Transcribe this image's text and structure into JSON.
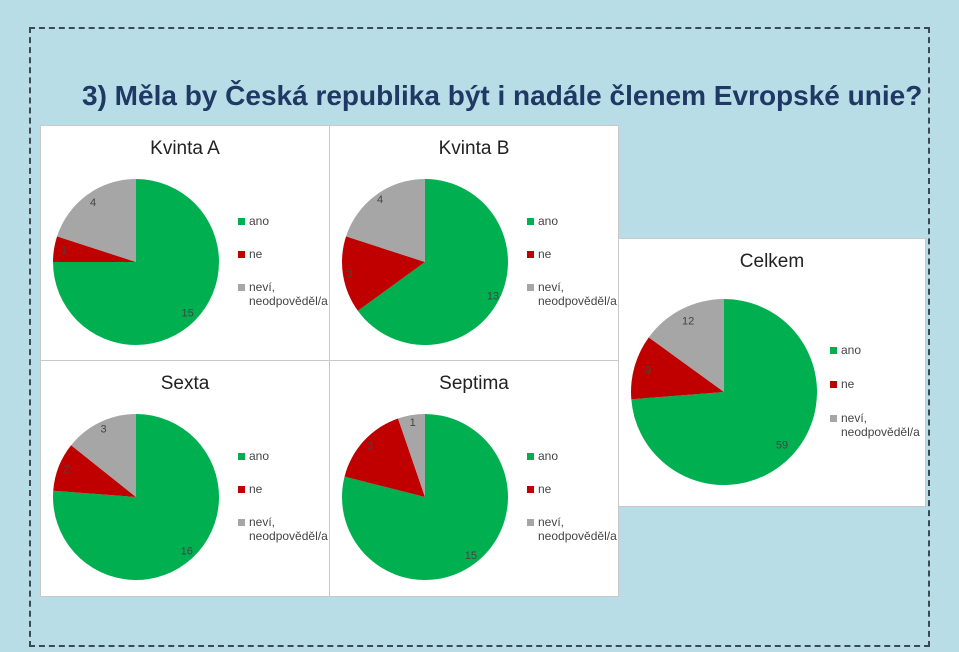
{
  "heading": "3)  Měla by Česká republika být i nadále členem Evropské unie?",
  "colors": {
    "ano": "#00b050",
    "ne": "#c00000",
    "nevi": "#a6a6a6"
  },
  "legend": [
    "ano",
    "ne",
    "neví, neodpověděl/a"
  ],
  "chart_data": [
    {
      "type": "pie",
      "title": "Kvinta A",
      "categories": [
        "ano",
        "ne",
        "neví, neodpověděl/a"
      ],
      "values": [
        15,
        1,
        4
      ]
    },
    {
      "type": "pie",
      "title": "Kvinta B",
      "categories": [
        "ano",
        "ne",
        "neví, neodpověděl/a"
      ],
      "values": [
        13,
        3,
        4
      ]
    },
    {
      "type": "pie",
      "title": "Celkem",
      "categories": [
        "ano",
        "ne",
        "neví, neodpověděl/a"
      ],
      "values": [
        59,
        9,
        12
      ]
    },
    {
      "type": "pie",
      "title": "Sexta",
      "categories": [
        "ano",
        "ne",
        "neví, neodpověděl/a"
      ],
      "values": [
        16,
        2,
        3
      ]
    },
    {
      "type": "pie",
      "title": "Septima",
      "categories": [
        "ano",
        "ne",
        "neví, neodpověděl/a"
      ],
      "values": [
        15,
        3,
        1
      ]
    }
  ]
}
